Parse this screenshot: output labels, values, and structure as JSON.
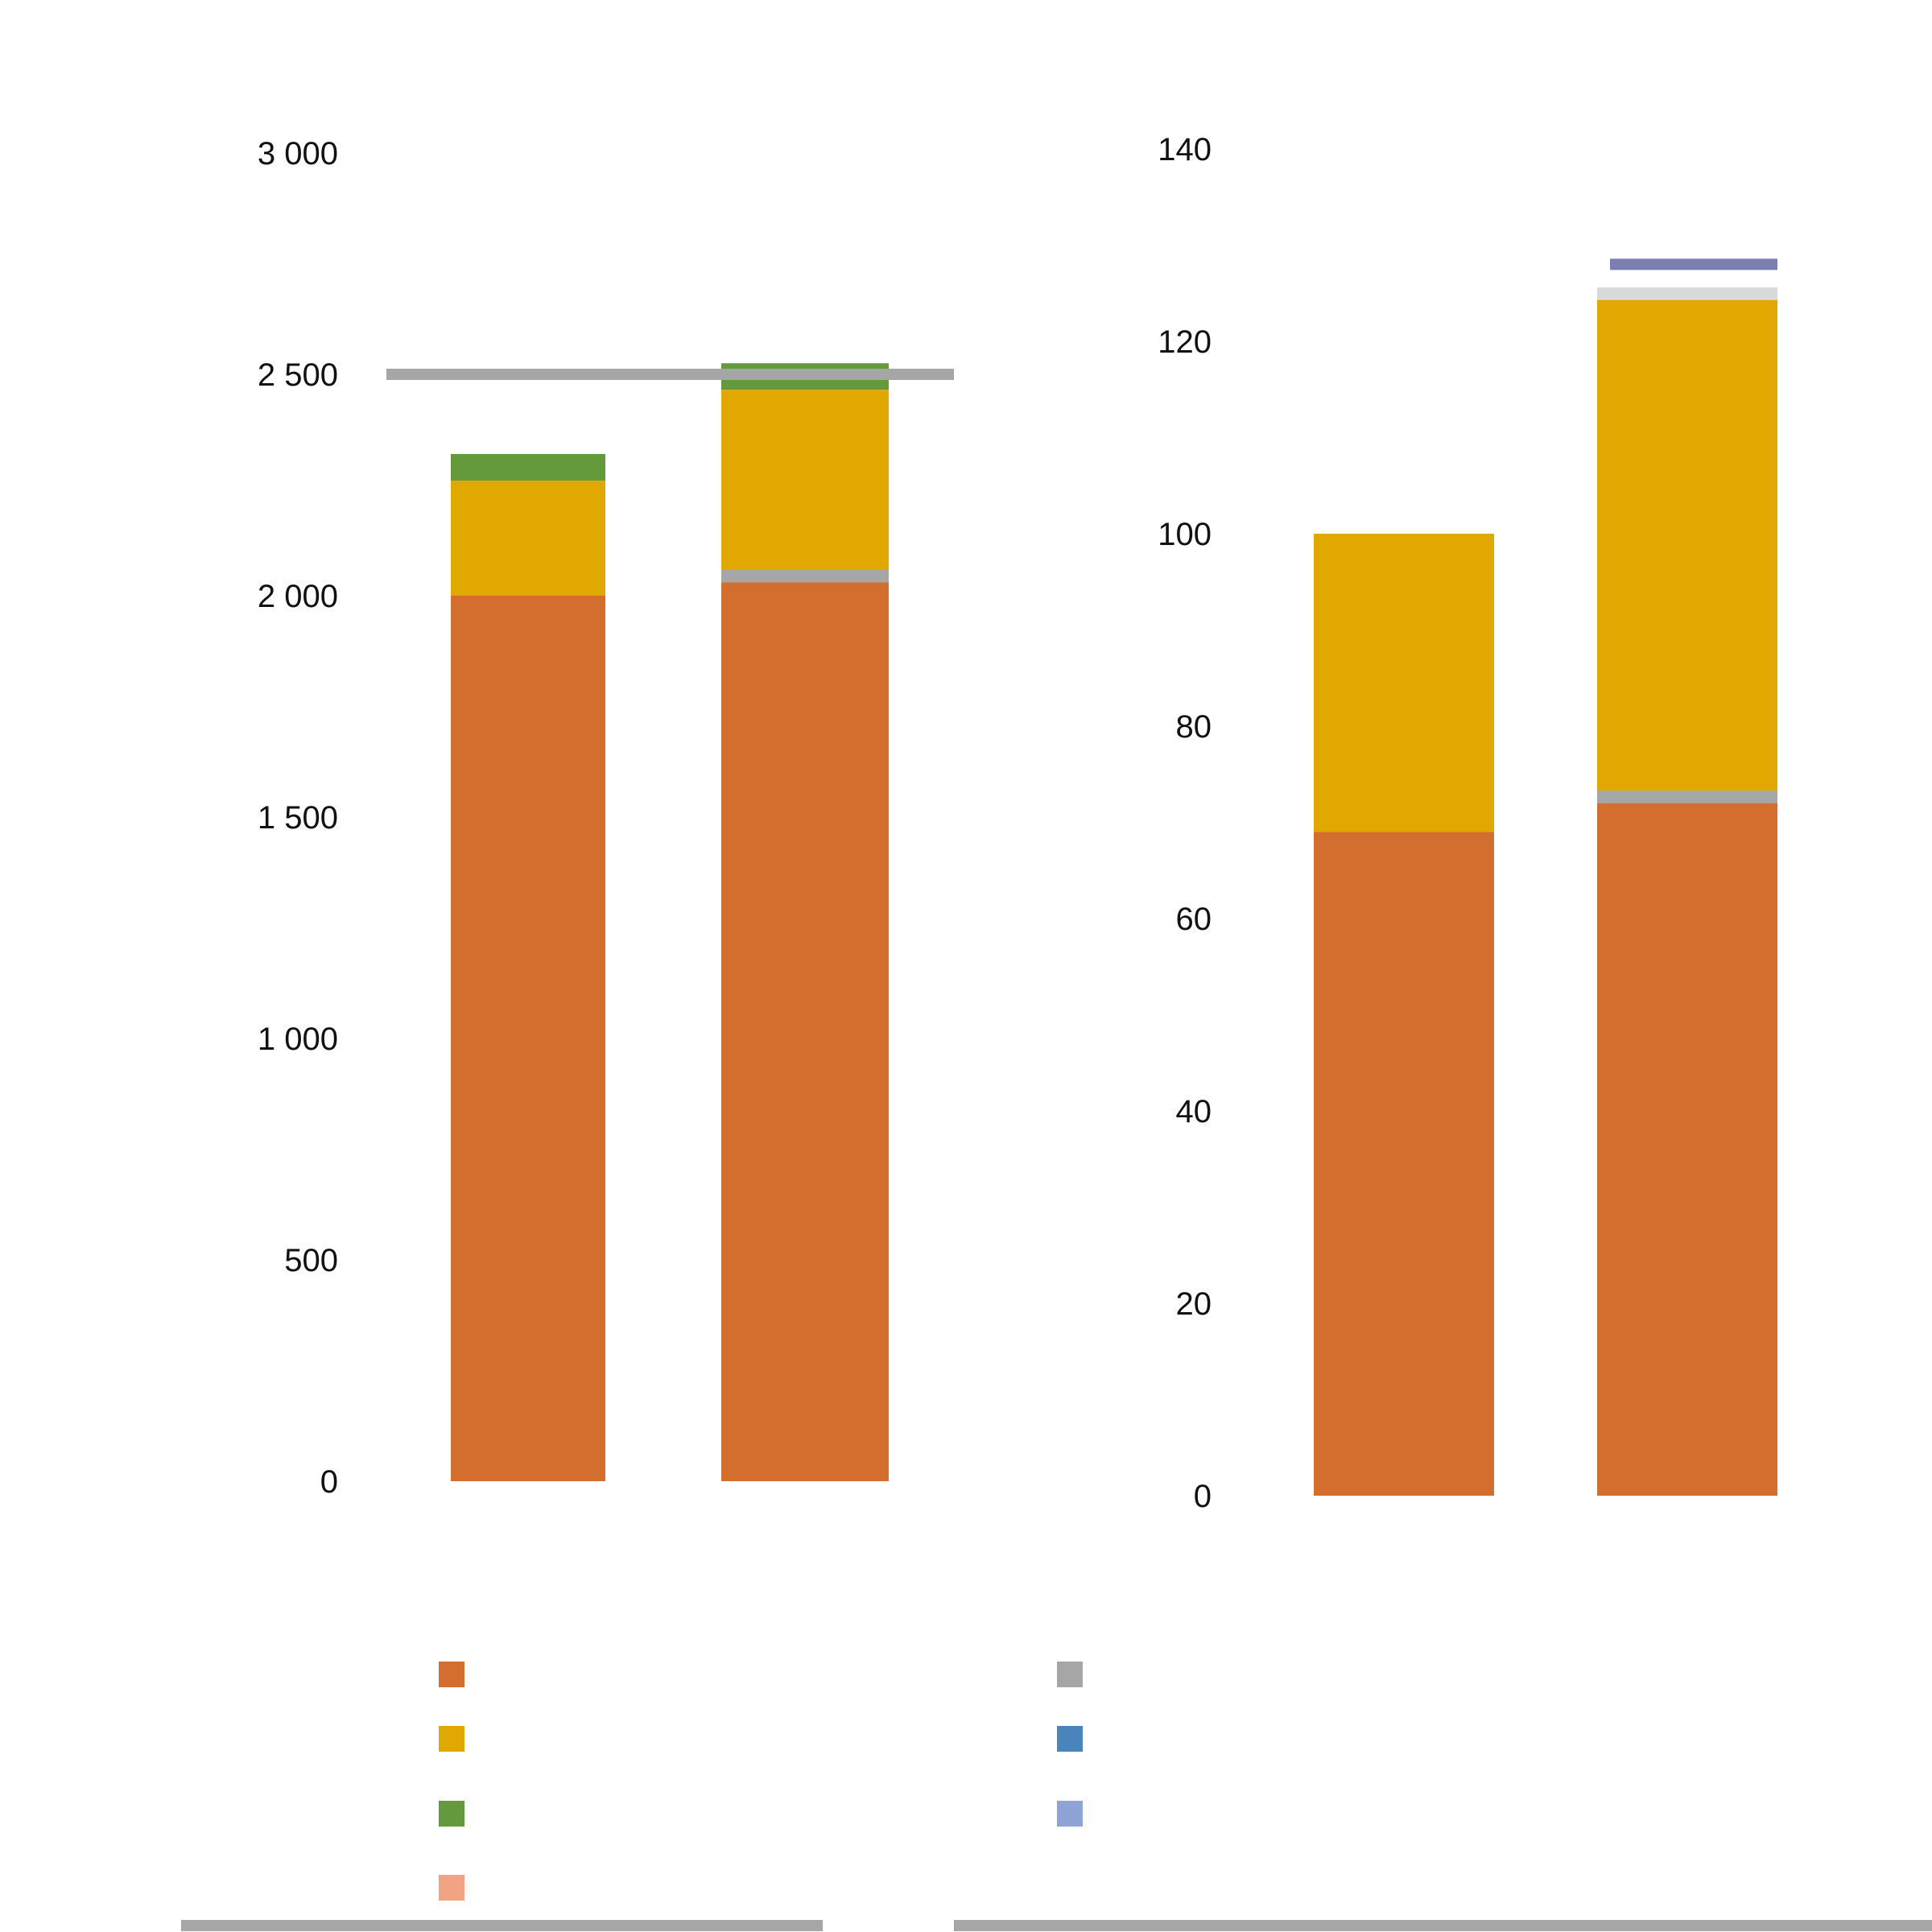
{
  "chart_data": [
    {
      "type": "bar",
      "stacked": true,
      "title": "",
      "xlabel": "",
      "ylabel": "",
      "categories": [
        "",
        ""
      ],
      "ylim": [
        0,
        3000
      ],
      "yticks": [
        "0",
        "500",
        "1 000",
        "1 500",
        "2 000",
        "2 500",
        "3 000"
      ],
      "series": [
        {
          "name": "",
          "color": "#d36e2e",
          "values": [
            2000,
            2030
          ]
        },
        {
          "name": "",
          "color": "#a6a6a6",
          "values": [
            0,
            30
          ]
        },
        {
          "name": "",
          "color": "#e0a800",
          "values": [
            260,
            405
          ]
        },
        {
          "name": "",
          "color": "#64993c",
          "values": [
            60,
            60
          ]
        },
        {
          "name": "",
          "color": "#f2a482",
          "values": [
            0,
            0
          ]
        }
      ],
      "reference_line": {
        "value": 2500,
        "color": "#a6a6a6"
      },
      "grid": false
    },
    {
      "type": "bar",
      "stacked": true,
      "title": "",
      "xlabel": "",
      "ylabel": "",
      "categories": [
        "",
        ""
      ],
      "ylim": [
        0,
        140
      ],
      "yticks": [
        "0",
        "20",
        "40",
        "60",
        "80",
        "100",
        "120",
        "140"
      ],
      "series": [
        {
          "name": "",
          "color": "#d36e2e",
          "values": [
            69,
            72
          ]
        },
        {
          "name": "",
          "color": "#a6a6a6",
          "values": [
            0,
            1.3
          ]
        },
        {
          "name": "",
          "color": "#e0a800",
          "values": [
            31,
            51
          ]
        },
        {
          "name": "",
          "color": "#d9d9d9",
          "values": [
            0,
            1.3
          ]
        }
      ],
      "reference_line": {
        "value": 128,
        "color": "#7a7fb0",
        "label": ""
      },
      "grid": false
    }
  ],
  "legend": [
    {
      "label": "",
      "color": "#d36e2e"
    },
    {
      "label": "",
      "color": "#e0a800"
    },
    {
      "label": "",
      "color": "#64993c"
    },
    {
      "label": "",
      "color": "#f2a482"
    },
    {
      "label": "",
      "color": "#a6a6a6"
    },
    {
      "label": "",
      "color": "#4a84bd"
    },
    {
      "label": "",
      "color": "#8fa3d6"
    }
  ]
}
